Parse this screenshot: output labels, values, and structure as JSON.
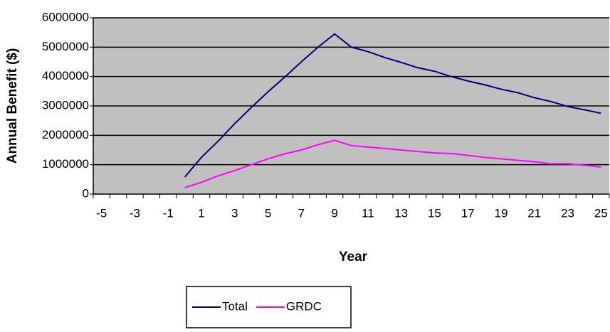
{
  "chart_data": {
    "type": "line",
    "y_label": "Annual Benefit ($)",
    "x_label": "Year",
    "categories": [
      -5,
      null,
      -3,
      null,
      -1,
      null,
      1,
      null,
      3,
      null,
      5,
      null,
      7,
      null,
      9,
      null,
      11,
      null,
      13,
      null,
      15,
      null,
      17,
      null,
      19,
      null,
      21,
      null,
      23,
      null,
      25
    ],
    "series": [
      {
        "name": "Total",
        "color": "#000080",
        "values": [
          null,
          null,
          null,
          null,
          null,
          580000,
          1250000,
          1800000,
          2400000,
          2950000,
          3480000,
          3980000,
          4500000,
          5000000,
          5450000,
          5000000,
          4850000,
          4650000,
          4480000,
          4300000,
          4180000,
          4000000,
          3850000,
          3720000,
          3570000,
          3450000,
          3280000,
          3150000,
          2980000,
          2870000,
          2750000
        ]
      },
      {
        "name": "GRDC",
        "color": "#ff00ff",
        "values": [
          null,
          null,
          null,
          null,
          null,
          220000,
          400000,
          620000,
          800000,
          1000000,
          1200000,
          1370000,
          1500000,
          1680000,
          1830000,
          1650000,
          1600000,
          1550000,
          1500000,
          1450000,
          1400000,
          1380000,
          1320000,
          1250000,
          1200000,
          1150000,
          1100000,
          1030000,
          1030000,
          980000,
          920000
        ]
      }
    ],
    "ylim": [
      0,
      6000000
    ],
    "yticks": [
      0,
      1000000,
      2000000,
      3000000,
      4000000,
      5000000,
      6000000
    ],
    "grid": true,
    "background": "#c0c0c0",
    "legend": "bottom"
  }
}
